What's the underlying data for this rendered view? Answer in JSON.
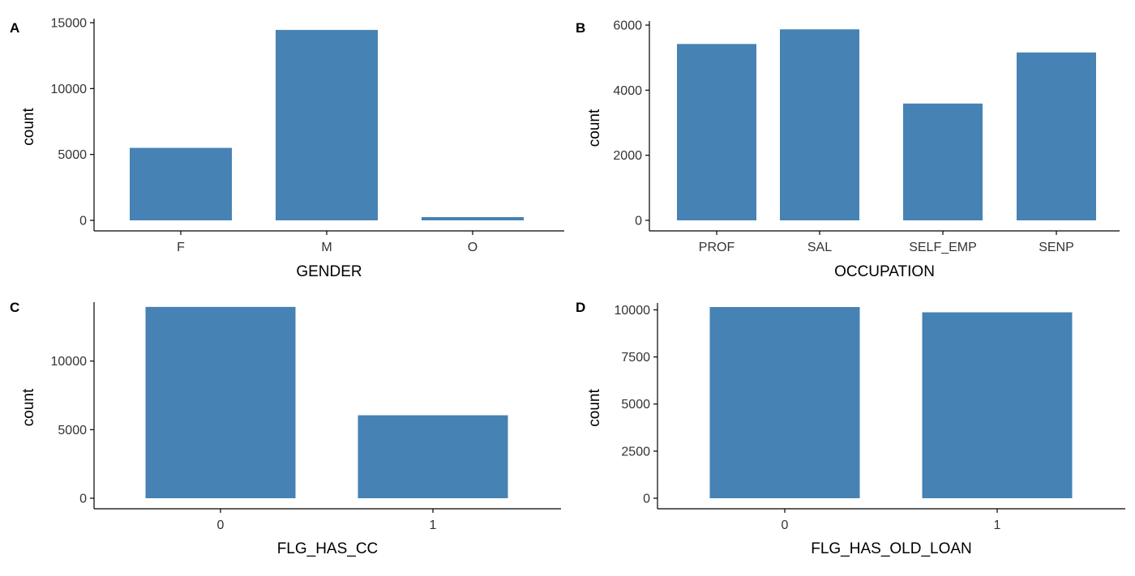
{
  "chart_data": [
    {
      "type": "bar",
      "panel_label": "A",
      "categories": [
        "F",
        "M",
        "O"
      ],
      "values": [
        5500,
        14450,
        200
      ],
      "xlabel": "GENDER",
      "ylabel": "count",
      "ylim": [
        0,
        15000
      ],
      "yticks": [
        0,
        5000,
        10000,
        15000
      ],
      "ytick_labels": [
        "0",
        "5000",
        "10000",
        "15000"
      ],
      "grid": false,
      "bar_color": "#4682B4"
    },
    {
      "type": "bar",
      "panel_label": "B",
      "categories": [
        "PROF",
        "SAL",
        "SELF_EMP",
        "SENP"
      ],
      "values": [
        5420,
        5870,
        3590,
        5160
      ],
      "xlabel": "OCCUPATION",
      "ylabel": "count",
      "ylim": [
        0,
        6000
      ],
      "yticks": [
        0,
        2000,
        4000,
        6000
      ],
      "ytick_labels": [
        "0",
        "2000",
        "4000",
        "6000"
      ],
      "grid": false,
      "bar_color": "#4682B4"
    },
    {
      "type": "bar",
      "panel_label": "C",
      "categories": [
        "0",
        "1"
      ],
      "values": [
        13950,
        6050
      ],
      "xlabel": "FLG_HAS_CC",
      "ylabel": "count",
      "ylim": [
        0,
        14000
      ],
      "yticks": [
        0,
        5000,
        10000
      ],
      "ytick_labels": [
        "0",
        "5000",
        "10000"
      ],
      "grid": false,
      "bar_color": "#4682B4"
    },
    {
      "type": "bar",
      "panel_label": "D",
      "categories": [
        "0",
        "1"
      ],
      "values": [
        10150,
        9870
      ],
      "xlabel": "FLG_HAS_OLD_LOAN",
      "ylabel": "count",
      "ylim": [
        0,
        10150
      ],
      "yticks": [
        0,
        2500,
        5000,
        7500,
        10000
      ],
      "ytick_labels": [
        "0",
        "2500",
        "5000",
        "7500",
        "10000"
      ],
      "grid": false,
      "bar_color": "#4682B4"
    }
  ]
}
